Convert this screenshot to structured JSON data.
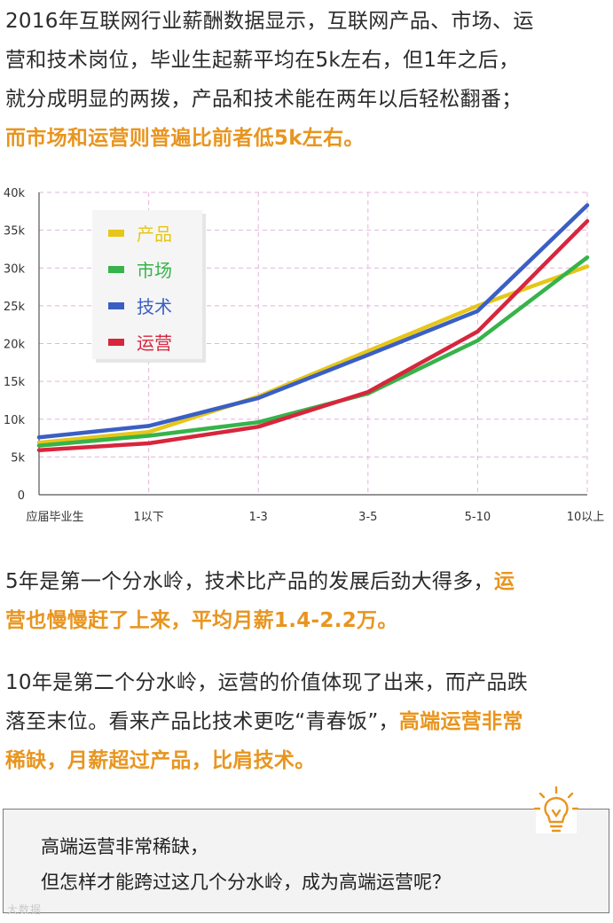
{
  "intro": {
    "line1": "2016年互联网行业薪酬数据显示，互联网产品、市场、运",
    "line2": "营和技术岗位，毕业生起薪平均在5k左右，但1年之后，",
    "line3": "就分成明显的两拨，产品和技术能在两年以后轻松翻番；",
    "line4": "而市场和运营则普遍比前者低5k左右。"
  },
  "colors": {
    "highlight": "#e8951f",
    "product": "#e6c619",
    "market": "#36b34a",
    "tech": "#3a5fc4",
    "operation": "#d7263d",
    "grid": "#e3b4dc"
  },
  "chart_data": {
    "type": "line",
    "categories": [
      "应届毕业生",
      "1以下",
      "1-3",
      "3-5",
      "5-10",
      "10以上"
    ],
    "y_ticks": [
      "0",
      "5k",
      "10k",
      "15k",
      "20k",
      "25k",
      "30k",
      "35k",
      "40k"
    ],
    "ylim": [
      0,
      40000
    ],
    "grid": true,
    "legend_position": "top-left",
    "series": [
      {
        "name": "产品",
        "key": "product",
        "values": [
          6900,
          8300,
          13000,
          19000,
          25000,
          30200
        ]
      },
      {
        "name": "市场",
        "key": "market",
        "values": [
          6500,
          7800,
          9600,
          13400,
          20400,
          31400
        ]
      },
      {
        "name": "技术",
        "key": "tech",
        "values": [
          7600,
          9100,
          12800,
          18500,
          24300,
          38300
        ]
      },
      {
        "name": "运营",
        "key": "operation",
        "values": [
          5900,
          6800,
          9000,
          13600,
          21600,
          36200
        ]
      }
    ]
  },
  "section2": {
    "line1_a": "5年是第一个分水岭，技术比产品的发展后劲大得多，",
    "line1_b": "运",
    "line2": "营也慢慢赶了上来，平均月薪1.4-2.2万。"
  },
  "section3": {
    "line1": "10年是第二个分水岭，运营的价值体现了出来，而产品跌",
    "line2_a": "落至末位。看来产品比技术更吃“青春饭”，",
    "line2_b": "高端运营非常",
    "line3": "稀缺，月薪超过产品，比肩技术。"
  },
  "tip": {
    "line1": "高端运营非常稀缺，",
    "line2": "但怎样才能跨过这几个分水岭，成为高端运营呢？",
    "icon": "lightbulb-icon"
  },
  "watermark": "大数据"
}
